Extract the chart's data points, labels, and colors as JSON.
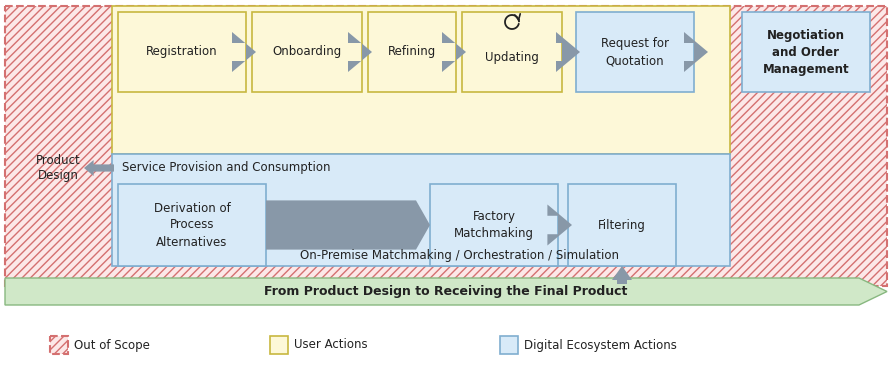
{
  "bg_color": "#ffffff",
  "hatch_bg_color": "#fce8e8",
  "hatch_color": "#d47070",
  "yellow_fill": "#fdf8d8",
  "yellow_stroke": "#c8b840",
  "blue_fill": "#d8eaf8",
  "blue_stroke": "#80aed0",
  "arrow_gray": "#8898a8",
  "arrow_gray_large": "#8898a8",
  "green_fill": "#d0e8c8",
  "green_stroke": "#88b880",
  "text_dark": "#222222",
  "service_label": "Service Provision and Consumption",
  "onpremise_label": "On-Premise Matchmaking / Orchestration / Simulation",
  "green_label": "From Product Design to Receiving the Final Product",
  "product_design": "Product\nDesign",
  "negotiation": "Negotiation\nand Order\nManagement",
  "top_labels": [
    "Registration",
    "Onboarding",
    "Refining",
    "Updating",
    "Request for\nQuotation"
  ],
  "bot_labels": [
    "Derivation of\nProcess\nAlternatives",
    "Factory\nMatchmaking",
    "Filtering"
  ],
  "legend_oos": "Out of Scope",
  "legend_ua": "User Actions",
  "legend_de": "Digital Ecosystem Actions"
}
